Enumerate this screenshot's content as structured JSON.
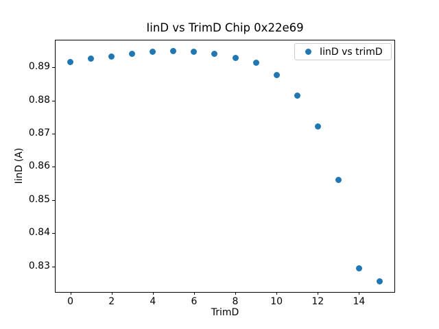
{
  "chart_data": {
    "type": "scatter",
    "title": "IinD vs TrimD Chip 0x22e69",
    "xlabel": "TrimD",
    "ylabel": "IinD (A)",
    "legend": {
      "label": "IinD vs trimD",
      "position": "upper right"
    },
    "series": [
      {
        "name": "IinD vs trimD",
        "x": [
          0,
          1,
          2,
          3,
          4,
          5,
          6,
          7,
          8,
          9,
          10,
          11,
          12,
          13,
          14,
          15
        ],
        "y": [
          0.8916,
          0.8927,
          0.8933,
          0.8941,
          0.8946,
          0.8948,
          0.8946,
          0.8941,
          0.8929,
          0.8914,
          0.8877,
          0.8815,
          0.8722,
          0.856,
          0.8295,
          0.8256
        ],
        "marker_color": "#1f77b4"
      }
    ],
    "xlim": [
      -0.75,
      15.75
    ],
    "ylim": [
      0.8221,
      0.8983
    ],
    "xticks": [
      0,
      2,
      4,
      6,
      8,
      10,
      12,
      14
    ],
    "yticks": [
      0.83,
      0.84,
      0.85,
      0.86,
      0.87,
      0.88,
      0.89
    ],
    "ytick_decimals": 2,
    "grid": false,
    "background": "#ffffff",
    "spine_color": "#000000"
  }
}
